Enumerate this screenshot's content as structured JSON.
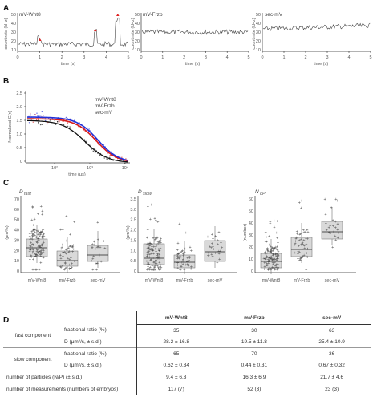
{
  "panels": {
    "a": "A",
    "b": "B",
    "c": "C",
    "d": "D"
  },
  "panel_a": {
    "traces": [
      {
        "title": "mV-Wnt8",
        "ylabel": "count rate (kHz)",
        "xlabel": "time (s)",
        "xticks": [
          "0",
          "1",
          "2",
          "3",
          "4",
          "5"
        ],
        "yticks": [
          "50",
          "40",
          "30",
          "20",
          "10"
        ]
      },
      {
        "title": "mV-Frzb",
        "ylabel": "count rate (kHz)",
        "xlabel": "time (s)",
        "xticks": [
          "0",
          "1",
          "2",
          "3",
          "4",
          "5"
        ],
        "yticks": [
          "50",
          "40",
          "30",
          "20",
          "10"
        ]
      },
      {
        "title": "sec-mV",
        "ylabel": "count rate (kHz)",
        "xlabel": "time (s)",
        "xticks": [
          "0",
          "1",
          "2",
          "3",
          "4",
          "5"
        ],
        "yticks": [
          "50",
          "40",
          "30",
          "20",
          "10"
        ]
      }
    ]
  },
  "panel_b": {
    "ylabel": "Normalized G(τ)",
    "xlabel": "time (μs)",
    "yticks": [
      "2.5",
      "2.0",
      "1.5",
      "1.0",
      "0.5",
      "0"
    ],
    "xticks": [
      "10²",
      "10³",
      "10⁴"
    ],
    "legend": [
      {
        "name": "mV-Wnt8",
        "color": "#2230d8"
      },
      {
        "name": "mV-Frzb",
        "color": "#d81c1c"
      },
      {
        "name": "sec-mV",
        "color": "#111111"
      }
    ]
  },
  "panel_c": {
    "plots": [
      {
        "title_main": "D",
        "title_sub": "fast",
        "ylabel": "(μm²/s)",
        "yticks": [
          "70",
          "60",
          "50",
          "40",
          "30",
          "20",
          "10",
          "0"
        ],
        "categories": [
          "mV-Wnt8",
          "mV-Frzb",
          "sec-mV"
        ]
      },
      {
        "title_main": "D",
        "title_sub": "slow",
        "ylabel": "(μm²/s)",
        "yticks": [
          "3.5",
          "3.0",
          "2.5",
          "2.0",
          "1.5",
          "1.0",
          "0.5",
          "0"
        ],
        "categories": [
          "mV-Wnt8",
          "mV-Frzb",
          "sec-mV"
        ]
      },
      {
        "title_main": "N",
        "title_sub": "oP",
        "ylabel": "(number)",
        "yticks": [
          "60",
          "50",
          "40",
          "30",
          "20",
          "10",
          "0"
        ],
        "categories": [
          "mV-Wnt8",
          "mV-Frzb",
          "sec-mV"
        ]
      }
    ]
  },
  "panel_d": {
    "headers": [
      "mV-Wnt8",
      "mV-Frzb",
      "sec-mV"
    ],
    "fast_group": "fast component",
    "slow_group": "slow component",
    "rows": [
      {
        "param": "fractional ratio (%)",
        "values": [
          "35",
          "30",
          "63"
        ]
      },
      {
        "param": "D (μm²/s, ± s.d.)",
        "values": [
          "28.2 ± 16.8",
          "19.5 ± 11.8",
          "25.4 ± 10.9"
        ]
      },
      {
        "param": "fractional ratio (%)",
        "values": [
          "65",
          "70",
          "36"
        ]
      },
      {
        "param": "D (μm²/s, ± s.d.)",
        "values": [
          "0.62 ± 0.34",
          "0.44 ± 0.31",
          "0.67 ± 0.32"
        ]
      }
    ],
    "particles_label": "number of particles (N/P) (± s.d.)",
    "particles_values": [
      "9.4 ± 6.3",
      "16.3 ± 6.9",
      "21.7 ± 4.6"
    ],
    "measure_label": "number of measurements (numbers of embryos)",
    "measure_values": [
      "117 (7)",
      "52 (3)",
      "23 (3)"
    ]
  }
}
